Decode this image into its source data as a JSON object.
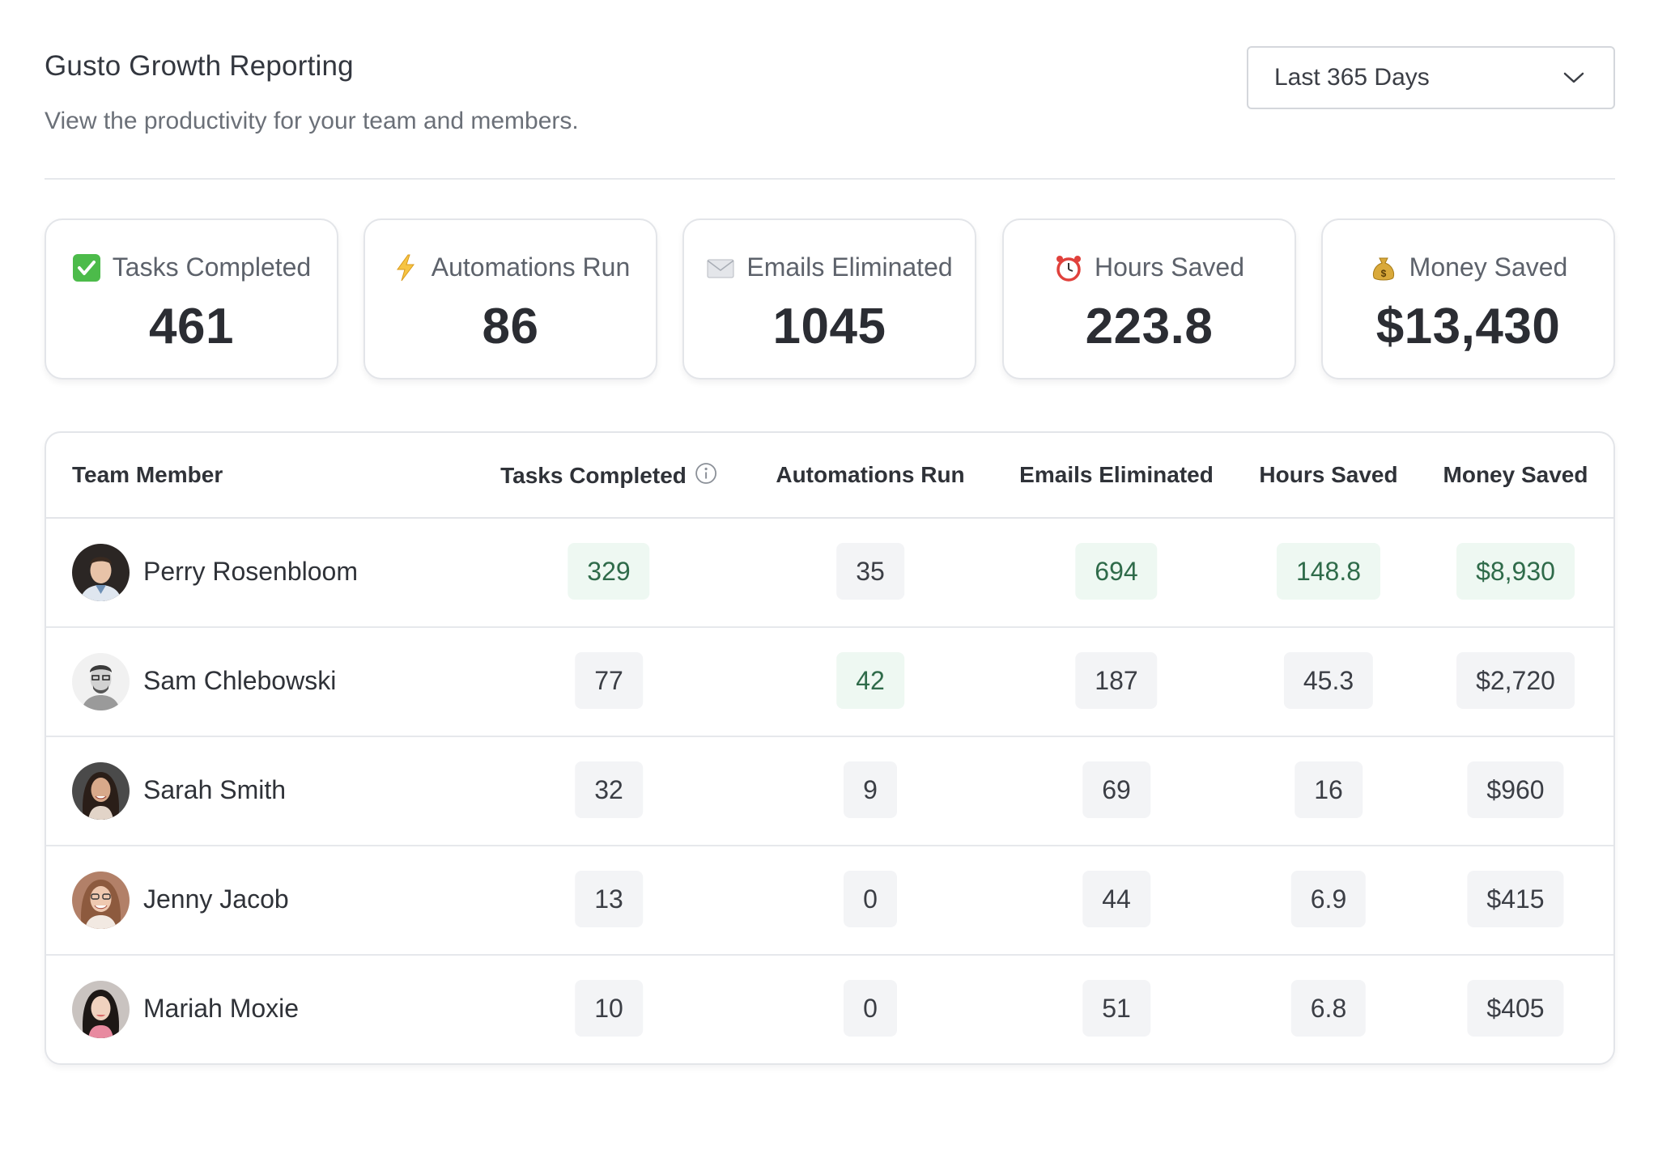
{
  "header": {
    "title": "Gusto Growth Reporting",
    "subtitle": "View the productivity for your team and members.",
    "range": {
      "selected": "Last 365 Days"
    }
  },
  "stats": [
    {
      "icon": "check-mark-icon",
      "label": "Tasks Completed",
      "value": "461"
    },
    {
      "icon": "lightning-icon",
      "label": "Automations Run",
      "value": "86"
    },
    {
      "icon": "envelope-icon",
      "label": "Emails Eliminated",
      "value": "1045"
    },
    {
      "icon": "alarm-clock-icon",
      "label": "Hours Saved",
      "value": "223.8"
    },
    {
      "icon": "money-bag-icon",
      "label": "Money Saved",
      "value": "$13,430"
    }
  ],
  "table": {
    "columns": [
      "Team Member",
      "Tasks Completed",
      "Automations Run",
      "Emails Eliminated",
      "Hours Saved",
      "Money Saved"
    ],
    "rows": [
      {
        "name": "Perry Rosenbloom",
        "tasks": "329",
        "automations": "35",
        "emails": "694",
        "hours": "148.8",
        "money": "$8,930"
      },
      {
        "name": "Sam Chlebowski",
        "tasks": "77",
        "automations": "42",
        "emails": "187",
        "hours": "45.3",
        "money": "$2,720"
      },
      {
        "name": "Sarah Smith",
        "tasks": "32",
        "automations": "9",
        "emails": "69",
        "hours": "16",
        "money": "$960"
      },
      {
        "name": "Jenny Jacob",
        "tasks": "13",
        "automations": "0",
        "emails": "44",
        "hours": "6.9",
        "money": "$415"
      },
      {
        "name": "Mariah Moxie",
        "tasks": "10",
        "automations": "0",
        "emails": "51",
        "hours": "6.8",
        "money": "$405"
      }
    ]
  },
  "colors": {
    "highlight_bg": "#eef8f2",
    "highlight_text": "#2f6b4a",
    "pill_bg": "#f3f4f6"
  }
}
